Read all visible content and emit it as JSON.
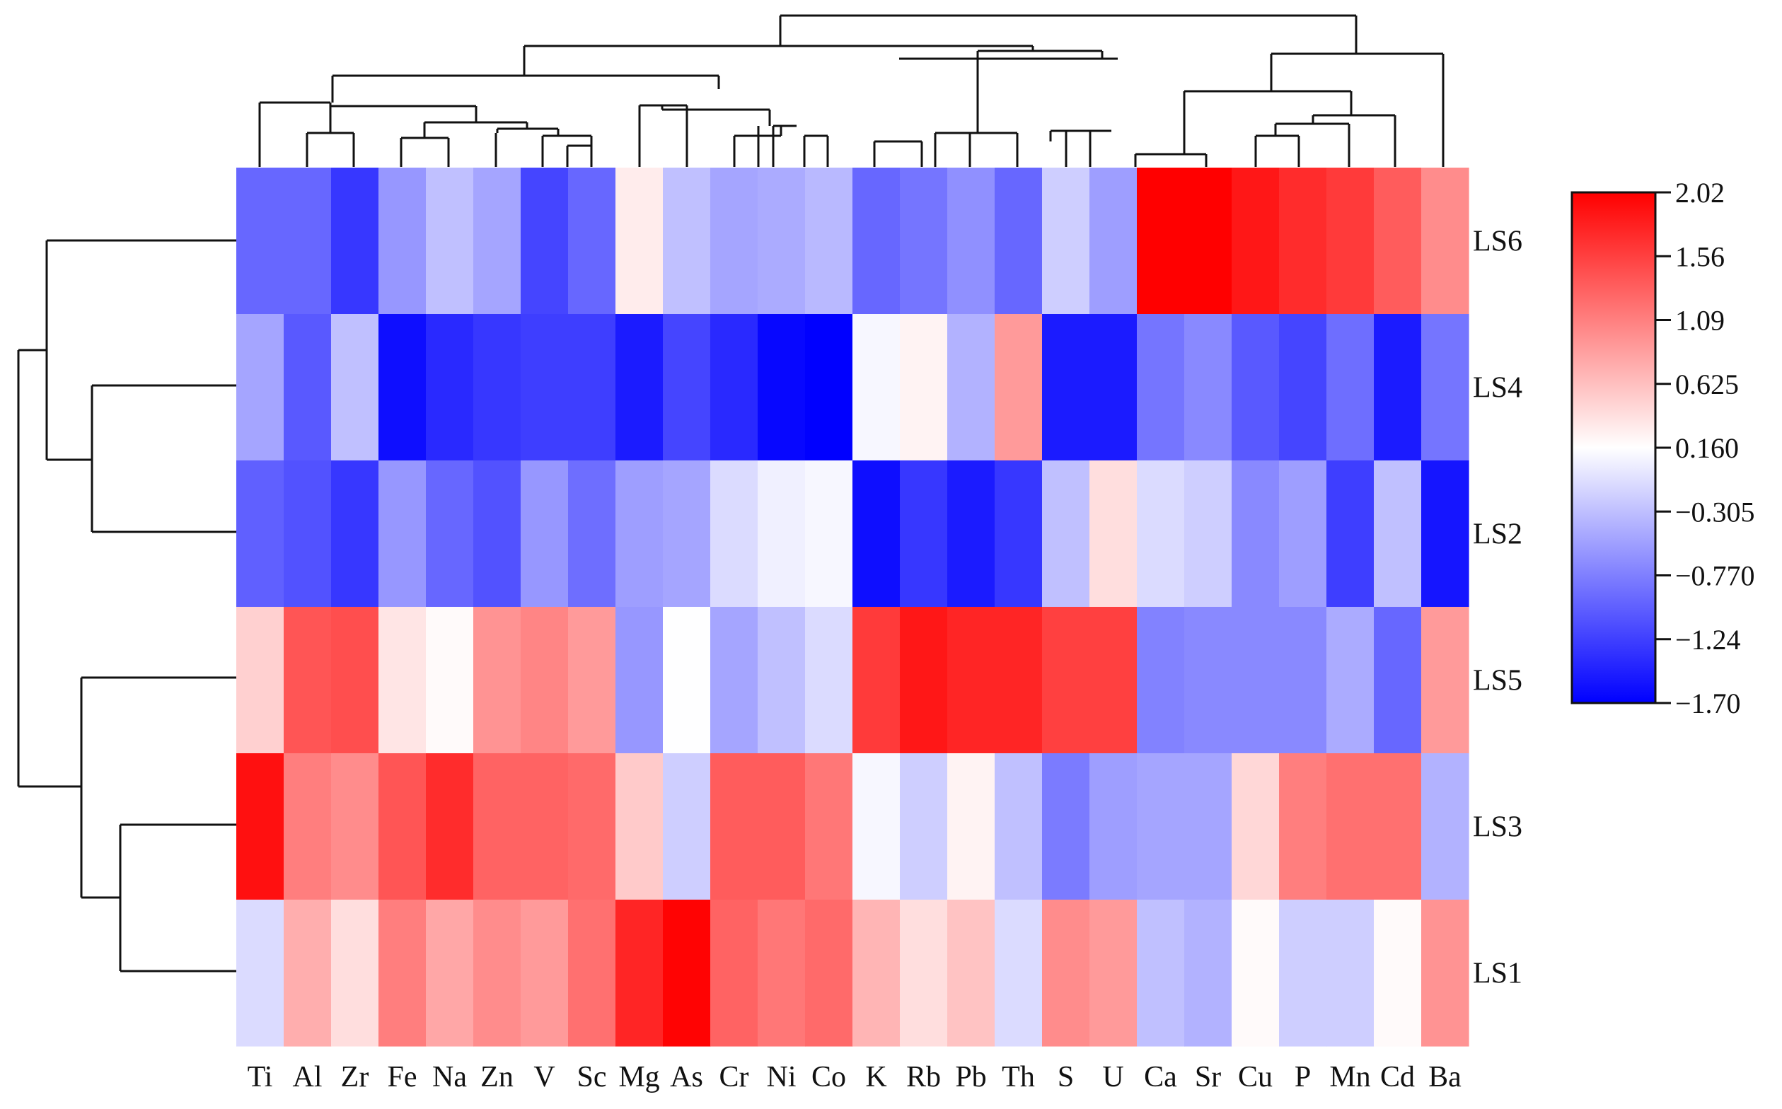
{
  "chart_data": {
    "type": "heatmap",
    "title": "",
    "columns": [
      "Ti",
      "Al",
      "Zr",
      "Fe",
      "Na",
      "Zn",
      "V",
      "Sc",
      "Mg",
      "As",
      "Cr",
      "Ni",
      "Co",
      "K",
      "Rb",
      "Pb",
      "Th",
      "S",
      "U",
      "Ca",
      "Sr",
      "Cu",
      "P",
      "Mn",
      "Cd",
      "Ba"
    ],
    "rows": [
      "LS6",
      "LS4",
      "LS2",
      "LS5",
      "LS3",
      "LS1"
    ],
    "values": [
      [
        -0.95,
        -0.95,
        -1.3,
        -0.6,
        -0.3,
        -0.5,
        -1.2,
        -0.95,
        0.3,
        -0.3,
        -0.5,
        -0.45,
        -0.35,
        -0.95,
        -0.85,
        -0.65,
        -0.95,
        -0.2,
        -0.55,
        2.02,
        2.02,
        1.85,
        1.7,
        1.6,
        1.35,
        1.0
      ],
      [
        -0.5,
        -1.05,
        -0.3,
        -1.6,
        -1.4,
        -1.3,
        -1.25,
        -1.25,
        -1.5,
        -1.2,
        -1.4,
        -1.65,
        -1.7,
        0.1,
        0.25,
        -0.4,
        0.9,
        -1.5,
        -1.5,
        -0.85,
        -0.7,
        -1.05,
        -1.2,
        -0.9,
        -1.5,
        -0.85
      ],
      [
        -1.0,
        -1.1,
        -1.3,
        -0.6,
        -0.95,
        -1.1,
        -0.6,
        -0.9,
        -0.55,
        -0.5,
        -0.1,
        0.05,
        0.1,
        -1.6,
        -1.3,
        -1.5,
        -1.3,
        -0.3,
        0.4,
        -0.1,
        -0.2,
        -0.7,
        -0.55,
        -1.25,
        -0.3,
        -1.55
      ],
      [
        0.5,
        1.4,
        1.45,
        0.35,
        0.2,
        0.95,
        1.05,
        0.9,
        -0.6,
        0.15,
        -0.5,
        -0.3,
        -0.1,
        1.6,
        1.85,
        1.75,
        1.75,
        1.55,
        1.55,
        -0.75,
        -0.7,
        -0.7,
        -0.7,
        -0.45,
        -0.95,
        0.9
      ],
      [
        1.9,
        1.1,
        1.0,
        1.4,
        1.7,
        1.3,
        1.3,
        1.25,
        0.55,
        -0.2,
        1.35,
        1.35,
        1.15,
        0.1,
        -0.2,
        0.25,
        -0.3,
        -0.8,
        -0.55,
        -0.5,
        -0.5,
        0.45,
        1.1,
        1.2,
        1.2,
        -0.4
      ],
      [
        -0.1,
        0.75,
        0.4,
        1.1,
        0.8,
        1.0,
        0.9,
        1.2,
        1.75,
        2.0,
        1.3,
        1.15,
        1.25,
        0.7,
        0.4,
        0.6,
        -0.1,
        1.0,
        0.9,
        -0.3,
        -0.4,
        0.2,
        -0.2,
        -0.2,
        0.2,
        0.95
      ]
    ],
    "colorbar": {
      "ticks": [
        "2.02",
        "1.56",
        "1.09",
        "0.625",
        "0.160",
        "−0.305",
        "−0.770",
        "−1.24",
        "−1.70"
      ],
      "vmin": -1.7,
      "vmax": 2.02,
      "low_color": "#0000ff",
      "mid_color": "#ffffff",
      "high_color": "#ff0000"
    },
    "column_dendrogram": "((((Ti,((Al,Zr),((Fe,Na),(Zn,(V,Sc))))),((Mg,As),(Cr,(Ni,Co)))),((((K,Rb),(Pb,Th)),(S,U)))),(((Ca,Sr),((Cu,P),Mn),Cd)),Ba))",
    "row_dendrogram": "(((LS6,(LS4,LS2)),(LS5,(LS3,LS1))))"
  }
}
